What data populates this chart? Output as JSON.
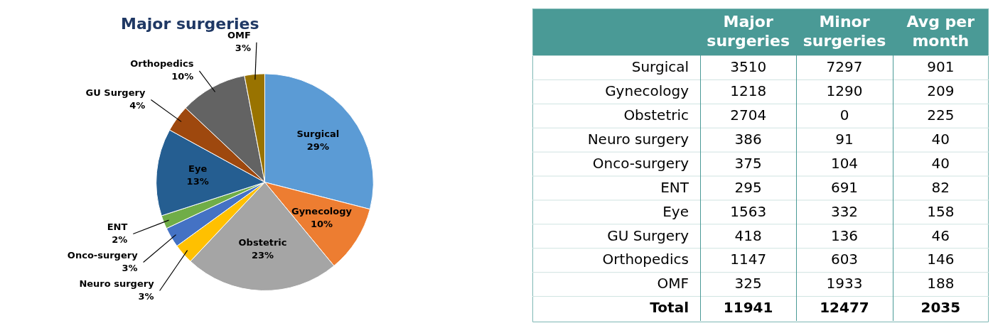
{
  "chart_data": [
    {
      "type": "pie",
      "title": "Major surgeries",
      "categories": [
        "Surgical",
        "Gynecology",
        "Obstetric",
        "Neuro surgery",
        "Onco-surgery",
        "ENT",
        "Eye",
        "GU Surgery",
        "Orthopedics",
        "OMF"
      ],
      "values": [
        29,
        10,
        23,
        3,
        3,
        2,
        13,
        4,
        10,
        3
      ],
      "value_labels": [
        "29%",
        "10%",
        "23%",
        "3%",
        "3%",
        "2%",
        "13%",
        "4%",
        "10%",
        "3%"
      ],
      "colors": [
        "#5b9bd5",
        "#ed7d31",
        "#a5a5a5",
        "#ffc000",
        "#4472c4",
        "#70ad47",
        "#255e91",
        "#9e480e",
        "#636363",
        "#997300"
      ],
      "legend": false
    },
    {
      "type": "heatmap",
      "categories": [
        "Major surgeries",
        "Minor surgeries",
        "Avg per month"
      ],
      "y_categories": [
        "Surgical",
        "Gynecology",
        "Obstetric",
        "Neuro surgery",
        "Onco-surgery",
        "ENT",
        "Eye",
        "GU Surgery",
        "Orthopedics",
        "OMF",
        "Total"
      ],
      "cells": [
        [
          3510,
          7297,
          901
        ],
        [
          1218,
          1290,
          209
        ],
        [
          2704,
          0,
          225
        ],
        [
          386,
          91,
          40
        ],
        [
          375,
          104,
          40
        ],
        [
          295,
          691,
          82
        ],
        [
          1563,
          332,
          158
        ],
        [
          418,
          136,
          46
        ],
        [
          1147,
          603,
          146
        ],
        [
          325,
          1933,
          188
        ],
        [
          11941,
          12477,
          2035
        ]
      ],
      "data_labels": true
    }
  ]
}
